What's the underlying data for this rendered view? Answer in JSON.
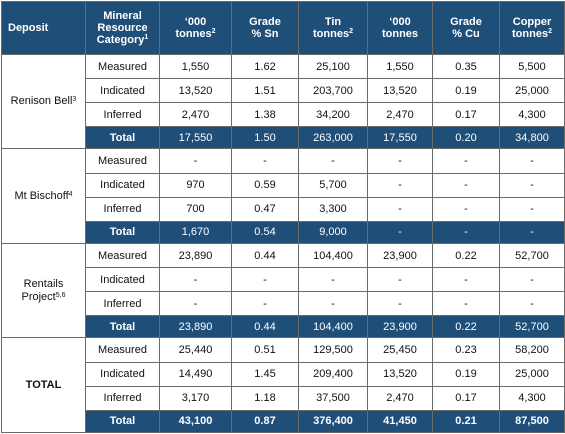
{
  "headers": {
    "deposit": "Deposit",
    "category_line1": "Mineral",
    "category_line2": "Resource",
    "category_line3": "Category",
    "category_sup": "1",
    "tonnes_line1": "‘000",
    "tonnes_line2": "tonnes",
    "tonnes_sup": "2",
    "grade_sn_line1": "Grade",
    "grade_sn_line2": "% Sn",
    "tin_line1": "Tin",
    "tin_line2": "tonnes",
    "tin_sup": "2",
    "tonnes_cu_line1": "‘000",
    "tonnes_cu_line2": "tonnes",
    "grade_cu_line1": "Grade",
    "grade_cu_line2": "% Cu",
    "copper_line1": "Copper",
    "copper_line2": "tonnes",
    "copper_sup": "2"
  },
  "deposits": [
    {
      "name": "Renison Bell",
      "sup": "3",
      "rows": [
        {
          "cat": "Measured",
          "t": "1,550",
          "gsn": "1.62",
          "tin": "25,100",
          "t2": "1,550",
          "gcu": "0.35",
          "cu": "5,500"
        },
        {
          "cat": "Indicated",
          "t": "13,520",
          "gsn": "1.51",
          "tin": "203,700",
          "t2": "13,520",
          "gcu": "0.19",
          "cu": "25,000"
        },
        {
          "cat": "Inferred",
          "t": "2,470",
          "gsn": "1.38",
          "tin": "34,200",
          "t2": "2,470",
          "gcu": "0.17",
          "cu": "4,300"
        }
      ],
      "total": {
        "cat": "Total",
        "t": "17,550",
        "gsn": "1.50",
        "tin": "263,000",
        "t2": "17,550",
        "gcu": "0.20",
        "cu": "34,800"
      }
    },
    {
      "name": "Mt Bischoff",
      "sup": "4",
      "rows": [
        {
          "cat": "Measured",
          "t": "-",
          "gsn": "-",
          "tin": "-",
          "t2": "-",
          "gcu": "-",
          "cu": "-"
        },
        {
          "cat": "Indicated",
          "t": "970",
          "gsn": "0.59",
          "tin": "5,700",
          "t2": "-",
          "gcu": "-",
          "cu": "-"
        },
        {
          "cat": "Inferred",
          "t": "700",
          "gsn": "0.47",
          "tin": "3,300",
          "t2": "-",
          "gcu": "-",
          "cu": "-"
        }
      ],
      "total": {
        "cat": "Total",
        "t": "1,670",
        "gsn": "0.54",
        "tin": "9,000",
        "t2": "-",
        "gcu": "-",
        "cu": "-"
      }
    },
    {
      "name": "Rentails Project",
      "sup": "5,6",
      "rows": [
        {
          "cat": "Measured",
          "t": "23,890",
          "gsn": "0.44",
          "tin": "104,400",
          "t2": "23,900",
          "gcu": "0.22",
          "cu": "52,700"
        },
        {
          "cat": "Indicated",
          "t": "-",
          "gsn": "-",
          "tin": "-",
          "t2": "-",
          "gcu": "-",
          "cu": "-"
        },
        {
          "cat": "Inferred",
          "t": "-",
          "gsn": "-",
          "tin": "-",
          "t2": "-",
          "gcu": "-",
          "cu": "-"
        }
      ],
      "total": {
        "cat": "Total",
        "t": "23,890",
        "gsn": "0.44",
        "tin": "104,400",
        "t2": "23,900",
        "gcu": "0.22",
        "cu": "52,700"
      }
    },
    {
      "name": "TOTAL",
      "sup": "",
      "rows": [
        {
          "cat": "Measured",
          "t": "25,440",
          "gsn": "0.51",
          "tin": "129,500",
          "t2": "25,450",
          "gcu": "0.23",
          "cu": "58,200"
        },
        {
          "cat": "Indicated",
          "t": "14,490",
          "gsn": "1.45",
          "tin": "209,400",
          "t2": "13,520",
          "gcu": "0.19",
          "cu": "25,000"
        },
        {
          "cat": "Inferred",
          "t": "3,170",
          "gsn": "1.18",
          "tin": "37,500",
          "t2": "2,470",
          "gcu": "0.17",
          "cu": "4,300"
        }
      ],
      "total": {
        "cat": "Total",
        "t": "43,100",
        "gsn": "0.87",
        "tin": "376,400",
        "t2": "41,450",
        "gcu": "0.21",
        "cu": "87,500"
      }
    }
  ]
}
